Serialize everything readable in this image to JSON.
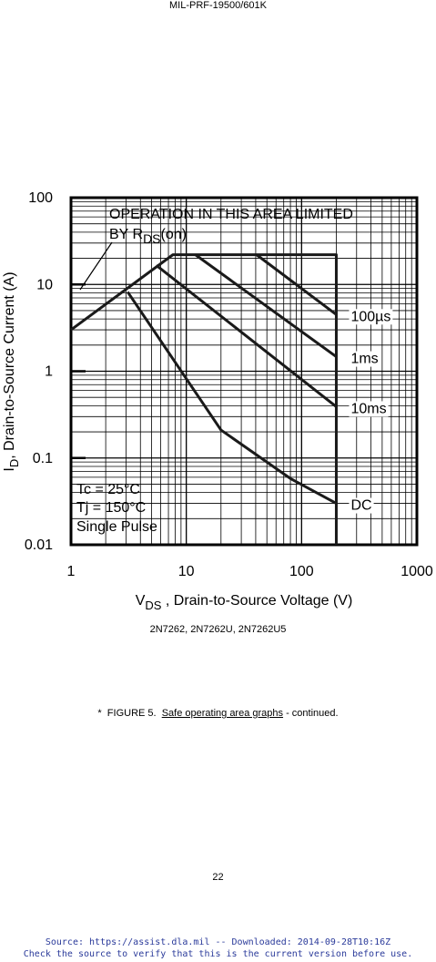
{
  "header": {
    "doc_id": "MIL-PRF-19500/601K"
  },
  "chart_data": {
    "type": "line",
    "annotation": {
      "line1": "OPERATION IN THIS AREA LIMITED",
      "line2": "BY R",
      "line2_sub": "DS",
      "line2_end": "(on)"
    },
    "conditions": [
      "Tc = 25°C",
      "Tj = 150°C",
      "Single Pulse"
    ],
    "y_label": {
      "main": "I",
      "sub": "D",
      "rest": ",  Drain-to-Source Current (A)"
    },
    "x_label": {
      "main": "V",
      "sub": "DS",
      "rest": " , Drain-to-Source Voltage (V)"
    },
    "x_scale": "log",
    "y_scale": "log",
    "grid": true,
    "color": "#1a1a1a",
    "xlim": [
      1,
      1000
    ],
    "ylim": [
      0.01,
      100
    ],
    "xticks": [
      1,
      10,
      100,
      1000
    ],
    "yticks": [
      0.01,
      0.1,
      1,
      10,
      100
    ],
    "limit": {
      "x": [
        1,
        7.65,
        200,
        200
      ],
      "values": [
        3,
        22,
        22,
        0.01
      ]
    },
    "series": [
      {
        "name": "100µs",
        "x": [
          40.7,
          200
        ],
        "values": [
          22,
          4.5
        ]
      },
      {
        "name": "1ms",
        "x": [
          12,
          200
        ],
        "values": [
          22,
          1.47
        ]
      },
      {
        "name": "10ms",
        "x": [
          5.5,
          200
        ],
        "values": [
          16.6,
          0.39
        ]
      },
      {
        "name": "DC",
        "x": [
          3.1,
          20,
          80,
          200
        ],
        "values": [
          8.2,
          0.21,
          0.058,
          0.03
        ]
      }
    ]
  },
  "caption": "2N7262, 2N7262U, 2N7262U5",
  "figure": {
    "prefix": "*  FIGURE 5.  ",
    "link": "Safe operating area graphs",
    "suffix": " - continued."
  },
  "page_number": "22",
  "footer": [
    "Source: https://assist.dla.mil -- Downloaded: 2014-09-28T10:16Z",
    "Check the source to verify that this is the current version before use."
  ]
}
